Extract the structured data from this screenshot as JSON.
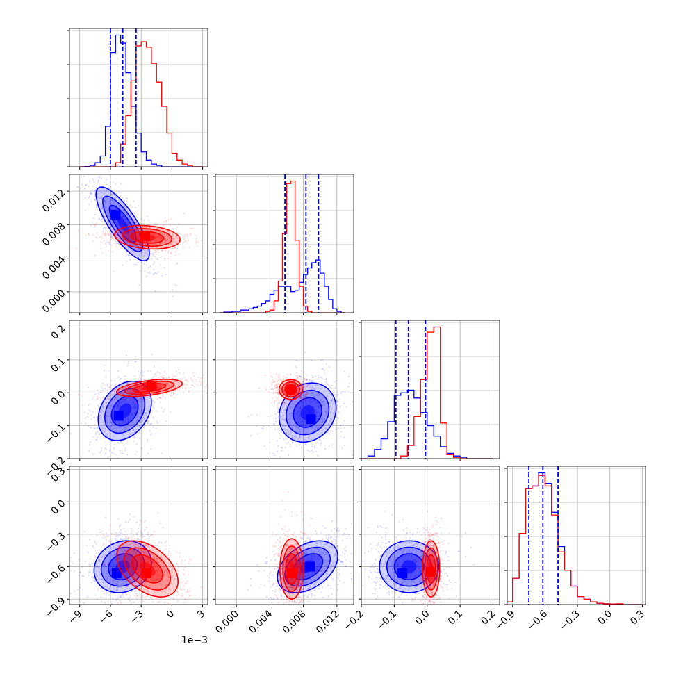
{
  "chart_data": {
    "type": "corner",
    "grid": true,
    "colors": {
      "series_a": "#0000ff",
      "series_b": "#ff0000",
      "grid": "#b0b0b0"
    },
    "params": [
      {
        "range": [
          -10,
          3.5
        ],
        "ticks": [
          -9,
          -6,
          -3,
          0,
          3
        ],
        "tick_labels": [
          "−9",
          "−6",
          "−3",
          "0",
          "3"
        ],
        "offset_text": "1e−3"
      },
      {
        "range": [
          -0.0025,
          0.014
        ],
        "ticks": [
          0.0,
          0.004,
          0.008,
          0.012
        ],
        "tick_labels": [
          "0.000",
          "0.004",
          "0.008",
          "0.012"
        ],
        "offset_text": ""
      },
      {
        "range": [
          -0.2,
          0.22
        ],
        "ticks": [
          -0.2,
          -0.1,
          0.0,
          0.1,
          0.2
        ],
        "tick_labels": [
          "−0.2",
          "−0.1",
          "0.0",
          "0.1",
          "0.2"
        ],
        "offset_text": ""
      },
      {
        "range": [
          -0.95,
          0.33
        ],
        "ticks": [
          -0.9,
          -0.6,
          -0.3,
          0.0,
          0.3
        ],
        "tick_labels": [
          "−0.9",
          "−0.6",
          "−0.3",
          "0.0",
          "0.3"
        ],
        "offset_text": ""
      }
    ],
    "quantiles_series_a": [
      [
        -6.0,
        -4.8,
        -3.5
      ],
      [
        0.0058,
        0.0083,
        0.0098
      ],
      [
        -0.095,
        -0.057,
        -0.005
      ],
      [
        -0.75,
        -0.62,
        -0.48
      ]
    ],
    "histograms": [
      {
        "bin_edges": [
          -9.0,
          -8.5,
          -8.0,
          -7.5,
          -7.0,
          -6.5,
          -6.0,
          -5.5,
          -5.0,
          -4.5,
          -4.0,
          -3.5,
          -3.0,
          -2.5,
          -2.0,
          -1.5,
          -1.0,
          -0.5,
          0.0,
          0.5,
          1.0,
          1.5,
          2.0,
          2.5,
          3.0
        ],
        "series_a": [
          0,
          0.2,
          1,
          3,
          8,
          30,
          85,
          98,
          92,
          70,
          45,
          25,
          11,
          5,
          2,
          1,
          0,
          0,
          0,
          0,
          0,
          0,
          0,
          0
        ],
        "series_b": [
          0,
          0,
          0,
          0,
          0,
          0,
          0,
          3,
          17,
          38,
          64,
          90,
          93,
          89,
          77,
          63,
          45,
          25,
          10,
          5,
          2,
          1,
          0,
          0
        ]
      },
      {
        "bin_edges": [
          -0.002,
          -0.0015,
          -0.001,
          -0.0005,
          0.0,
          0.0005,
          0.001,
          0.0015,
          0.002,
          0.0025,
          0.003,
          0.0035,
          0.004,
          0.0045,
          0.005,
          0.0055,
          0.006,
          0.0065,
          0.007,
          0.0075,
          0.008,
          0.0085,
          0.009,
          0.0095,
          0.01,
          0.0105,
          0.011,
          0.0115,
          0.012,
          0.0125,
          0.013
        ],
        "series_a": [
          0,
          0.5,
          0.5,
          1,
          1,
          2,
          2,
          3,
          4,
          5,
          7,
          9,
          14,
          17,
          20,
          20,
          20,
          16,
          17,
          23,
          29,
          34,
          38,
          40,
          30,
          20,
          10,
          3,
          1,
          0
        ],
        "series_b": [
          0,
          0,
          0,
          0,
          0,
          0,
          0,
          0,
          0,
          0,
          0,
          1,
          2,
          9,
          24,
          60,
          98,
          100,
          55,
          20,
          5,
          1,
          0,
          0,
          0,
          0,
          0,
          0,
          0,
          0
        ]
      },
      {
        "bin_edges": [
          -0.2,
          -0.18,
          -0.16,
          -0.14,
          -0.12,
          -0.1,
          -0.08,
          -0.06,
          -0.04,
          -0.02,
          0.0,
          0.02,
          0.04,
          0.06,
          0.08,
          0.1,
          0.12,
          0.14,
          0.16,
          0.18,
          0.2
        ],
        "series_a": [
          0,
          2,
          7,
          15,
          28,
          48,
          50,
          52,
          46,
          35,
          25,
          17,
          9,
          4,
          2,
          1,
          0,
          0,
          0,
          0
        ],
        "series_b": [
          0,
          0,
          0,
          0,
          0,
          0,
          2,
          10,
          32,
          60,
          96,
          100,
          27,
          3,
          1,
          0,
          0,
          0,
          0,
          0
        ]
      },
      {
        "bin_edges": [
          -0.96,
          -0.9,
          -0.84,
          -0.78,
          -0.72,
          -0.66,
          -0.6,
          -0.54,
          -0.48,
          -0.42,
          -0.36,
          -0.3,
          -0.24,
          -0.18,
          -0.12,
          -0.06,
          0.0,
          0.06,
          0.12,
          0.18,
          0.24,
          0.3
        ],
        "series_a": [
          1,
          10,
          27,
          44,
          45,
          50,
          46,
          35,
          22,
          13,
          7,
          3,
          2,
          1,
          0.5,
          0.3,
          0.2,
          0.1,
          0,
          0,
          0
        ],
        "series_b": [
          1,
          10,
          27,
          44,
          45,
          49,
          45,
          34,
          20,
          13,
          7,
          3,
          2,
          1,
          0.5,
          0.3,
          0.2,
          0.3,
          0,
          0,
          0
        ]
      }
    ],
    "joint": [
      {
        "x": 0,
        "y": 1,
        "series_a": {
          "mean": [
            -4.8,
            0.0081
          ],
          "sd": [
            1.3,
            0.0022
          ],
          "rho": -0.8,
          "peak": [
            -5.5,
            0.0092
          ]
        },
        "series_b": {
          "mean": [
            -2.4,
            0.0065
          ],
          "sd": [
            1.6,
            0.0007
          ],
          "rho": -0.2,
          "peak": [
            -2.6,
            0.0066
          ]
        }
      },
      {
        "x": 0,
        "y": 2,
        "series_a": {
          "mean": [
            -4.6,
            -0.055
          ],
          "sd": [
            1.3,
            0.045
          ],
          "rho": 0.3,
          "peak": [
            -5.2,
            -0.07
          ]
        },
        "series_b": {
          "mean": [
            -2.2,
            0.015
          ],
          "sd": [
            1.6,
            0.013
          ],
          "rho": 0.5,
          "peak": [
            -2.0,
            0.02
          ]
        }
      },
      {
        "x": 0,
        "y": 3,
        "series_a": {
          "mean": [
            -4.8,
            -0.6
          ],
          "sd": [
            1.4,
            0.12
          ],
          "rho": 0.15,
          "peak": [
            -5.4,
            -0.66
          ]
        },
        "series_b": {
          "mean": [
            -2.4,
            -0.62
          ],
          "sd": [
            1.5,
            0.13
          ],
          "rho": -0.45,
          "peak": [
            -2.5,
            -0.66
          ]
        }
      },
      {
        "x": 1,
        "y": 2,
        "series_a": {
          "mean": [
            0.0085,
            -0.06
          ],
          "sd": [
            0.0017,
            0.045
          ],
          "rho": 0.15,
          "peak": [
            0.0089,
            -0.08
          ]
        },
        "series_b": {
          "mean": [
            0.0065,
            0.01
          ],
          "sd": [
            0.0007,
            0.015
          ],
          "rho": 0.0,
          "peak": [
            0.0065,
            0.01
          ]
        }
      },
      {
        "x": 1,
        "y": 3,
        "series_a": {
          "mean": [
            0.0085,
            -0.6
          ],
          "sd": [
            0.0018,
            0.12
          ],
          "rho": 0.4,
          "peak": [
            0.0088,
            -0.6
          ]
        },
        "series_b": {
          "mean": [
            0.0066,
            -0.62
          ],
          "sd": [
            0.0007,
            0.14
          ],
          "rho": 0.0,
          "peak": [
            0.0066,
            -0.66
          ]
        }
      },
      {
        "x": 2,
        "y": 3,
        "series_a": {
          "mean": [
            -0.055,
            -0.6
          ],
          "sd": [
            0.045,
            0.12
          ],
          "rho": 0.0,
          "peak": [
            -0.075,
            -0.66
          ]
        },
        "series_b": {
          "mean": [
            0.012,
            -0.62
          ],
          "sd": [
            0.013,
            0.13
          ],
          "rho": 0.0,
          "peak": [
            0.01,
            -0.65
          ]
        }
      }
    ]
  }
}
